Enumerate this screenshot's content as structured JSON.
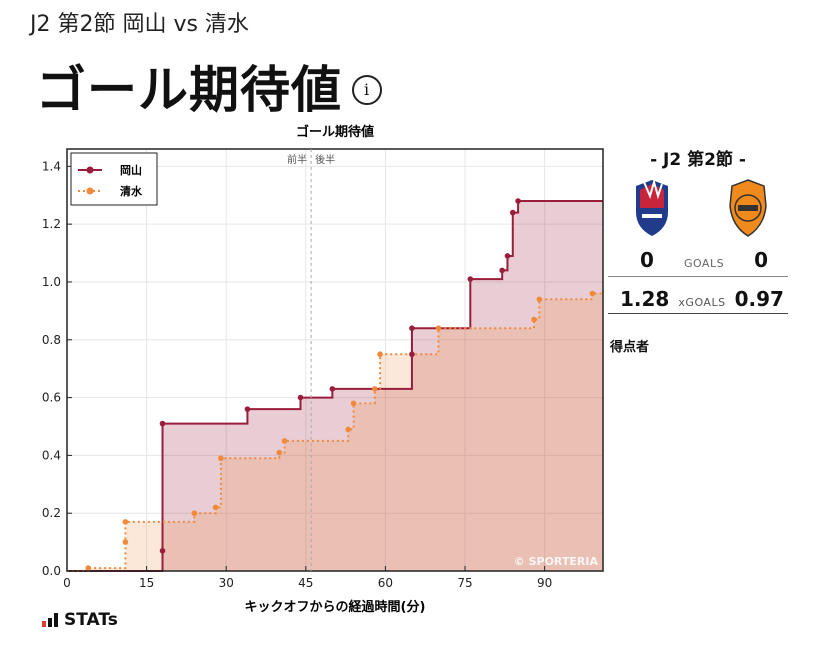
{
  "header": {
    "match_title": "J2 第2節 岡山 vs 清水",
    "page_title": "ゴール期待値",
    "info_icon": "info-icon"
  },
  "side_panel": {
    "heading": "- J2 第2節 -",
    "home": {
      "crest": "okayama-crest",
      "goals": "0",
      "xg": "1.28"
    },
    "away": {
      "crest": "shimizu-crest",
      "goals": "0",
      "xg": "0.97"
    },
    "goals_label": "GOALS",
    "xg_label": "xGOALS",
    "scorers_label": "得点者"
  },
  "brand": {
    "label": "STATs",
    "icon": "bar-chart-icon"
  },
  "colors": {
    "home": "#9b1d3c",
    "away": "#f08a3a"
  },
  "chart_data": {
    "type": "line",
    "step": true,
    "title": "ゴール期待値",
    "xlabel": "キックオフからの経過時間(分)",
    "ylabel": "",
    "xlim": [
      0,
      101
    ],
    "ylim": [
      0,
      1.46
    ],
    "xticks": [
      0,
      15,
      30,
      45,
      60,
      75,
      90
    ],
    "yticks": [
      0.0,
      0.2,
      0.4,
      0.6,
      0.8,
      1.0,
      1.2,
      1.4
    ],
    "grid": true,
    "legend_position": "top-left",
    "halftime": {
      "x": 46,
      "labels": [
        "前半",
        "後半"
      ]
    },
    "watermark": "© SPORTERIA",
    "series": [
      {
        "name": "岡山",
        "color": "#9b1d3c",
        "style": "solid",
        "points": [
          [
            0,
            0
          ],
          [
            18,
            0.07
          ],
          [
            18,
            0.51
          ],
          [
            34,
            0.56
          ],
          [
            44,
            0.6
          ],
          [
            50,
            0.63
          ],
          [
            65,
            0.75
          ],
          [
            65,
            0.84
          ],
          [
            76,
            1.01
          ],
          [
            82,
            1.04
          ],
          [
            83,
            1.09
          ],
          [
            84,
            1.24
          ],
          [
            85,
            1.28
          ],
          [
            101,
            1.28
          ]
        ]
      },
      {
        "name": "清水",
        "color": "#f08a3a",
        "style": "dotted",
        "points": [
          [
            0,
            0
          ],
          [
            4,
            0.01
          ],
          [
            11,
            0.1
          ],
          [
            11,
            0.17
          ],
          [
            24,
            0.2
          ],
          [
            28,
            0.22
          ],
          [
            29,
            0.39
          ],
          [
            40,
            0.41
          ],
          [
            41,
            0.45
          ],
          [
            53,
            0.49
          ],
          [
            54,
            0.58
          ],
          [
            58,
            0.63
          ],
          [
            59,
            0.75
          ],
          [
            70,
            0.84
          ],
          [
            88,
            0.87
          ],
          [
            89,
            0.94
          ],
          [
            99,
            0.96
          ],
          [
            101,
            0.97
          ]
        ]
      }
    ]
  }
}
